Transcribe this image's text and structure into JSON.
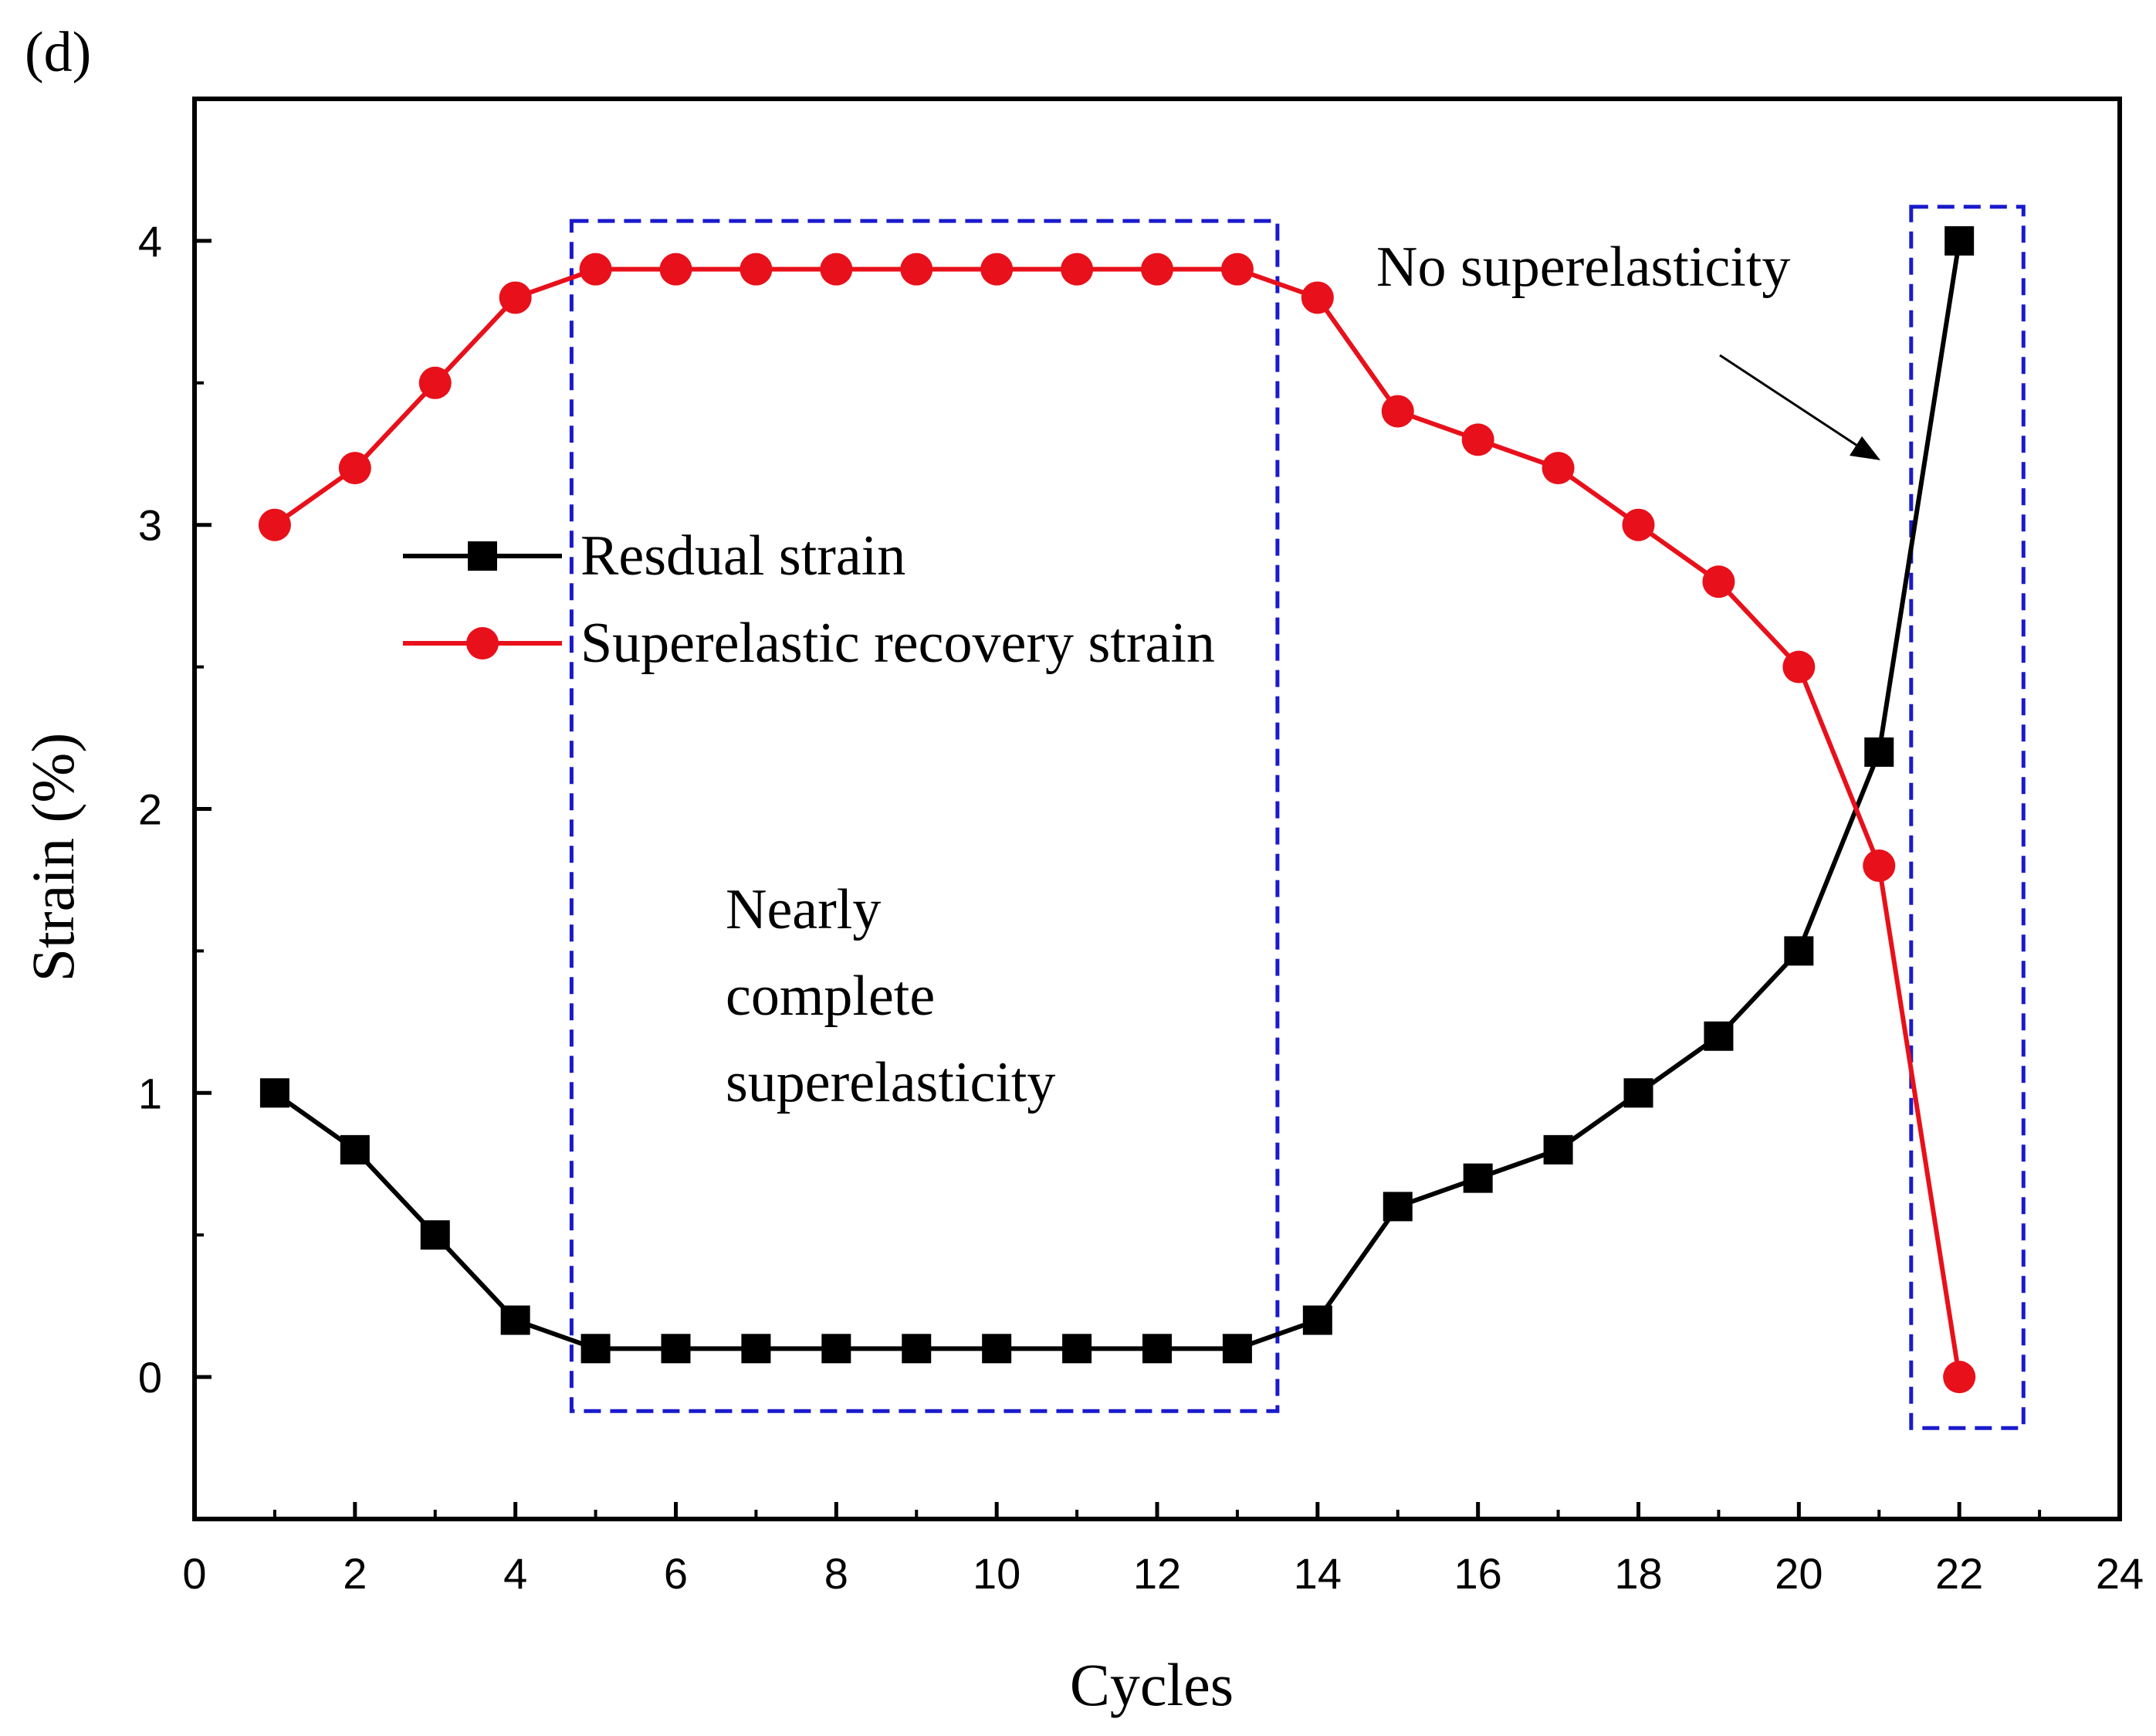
{
  "panel_label": "(d)",
  "colors": {
    "residual": "#000000",
    "recovery": "#e8101a",
    "box": "#1a1acc",
    "axis": "#000000"
  },
  "chart_data": {
    "type": "line",
    "xlabel": "Cycles",
    "ylabel": "Strain (%)",
    "xlim": [
      0,
      24
    ],
    "ylim": [
      -0.5,
      4.5
    ],
    "xticks": [
      0,
      2,
      4,
      6,
      8,
      10,
      12,
      14,
      16,
      18,
      20,
      22,
      24
    ],
    "xtick_labels": [
      "0",
      "2",
      "4",
      "6",
      "8",
      "10",
      "12",
      "14",
      "16",
      "18",
      "20",
      "22",
      "24"
    ],
    "yticks": [
      0,
      1,
      2,
      3,
      4
    ],
    "ytick_labels": [
      "0",
      "1",
      "2",
      "3",
      "4"
    ],
    "grid": false,
    "legend_position": "upper-left",
    "x": [
      1,
      2,
      3,
      4,
      5,
      6,
      7,
      8,
      9,
      10,
      11,
      12,
      13,
      14,
      15,
      16,
      17,
      18,
      19,
      20,
      21,
      22
    ],
    "series": [
      {
        "name": "Resdual strain",
        "marker": "square",
        "color": "#000000",
        "values": [
          1.0,
          0.8,
          0.5,
          0.2,
          0.1,
          0.1,
          0.1,
          0.1,
          0.1,
          0.1,
          0.1,
          0.1,
          0.1,
          0.2,
          0.6,
          0.7,
          0.8,
          1.0,
          1.2,
          1.5,
          2.2,
          4.0
        ]
      },
      {
        "name": "Superelastic recovery strain",
        "marker": "circle",
        "color": "#e8101a",
        "values": [
          3.0,
          3.2,
          3.5,
          3.8,
          3.9,
          3.9,
          3.9,
          3.9,
          3.9,
          3.9,
          3.9,
          3.9,
          3.9,
          3.8,
          3.4,
          3.3,
          3.2,
          3.0,
          2.8,
          2.5,
          1.8,
          0.0
        ]
      }
    ],
    "regions": [
      {
        "x_range": [
          4.7,
          13.5
        ],
        "y_range": [
          -0.12,
          4.07
        ],
        "label": "Nearly complete superelasticity",
        "label_lines": [
          "Nearly",
          "complete",
          "superelasticity"
        ]
      },
      {
        "x_range": [
          21.4,
          22.8
        ],
        "y_range": [
          -0.18,
          4.12
        ],
        "label": "No superelasticity"
      }
    ]
  }
}
